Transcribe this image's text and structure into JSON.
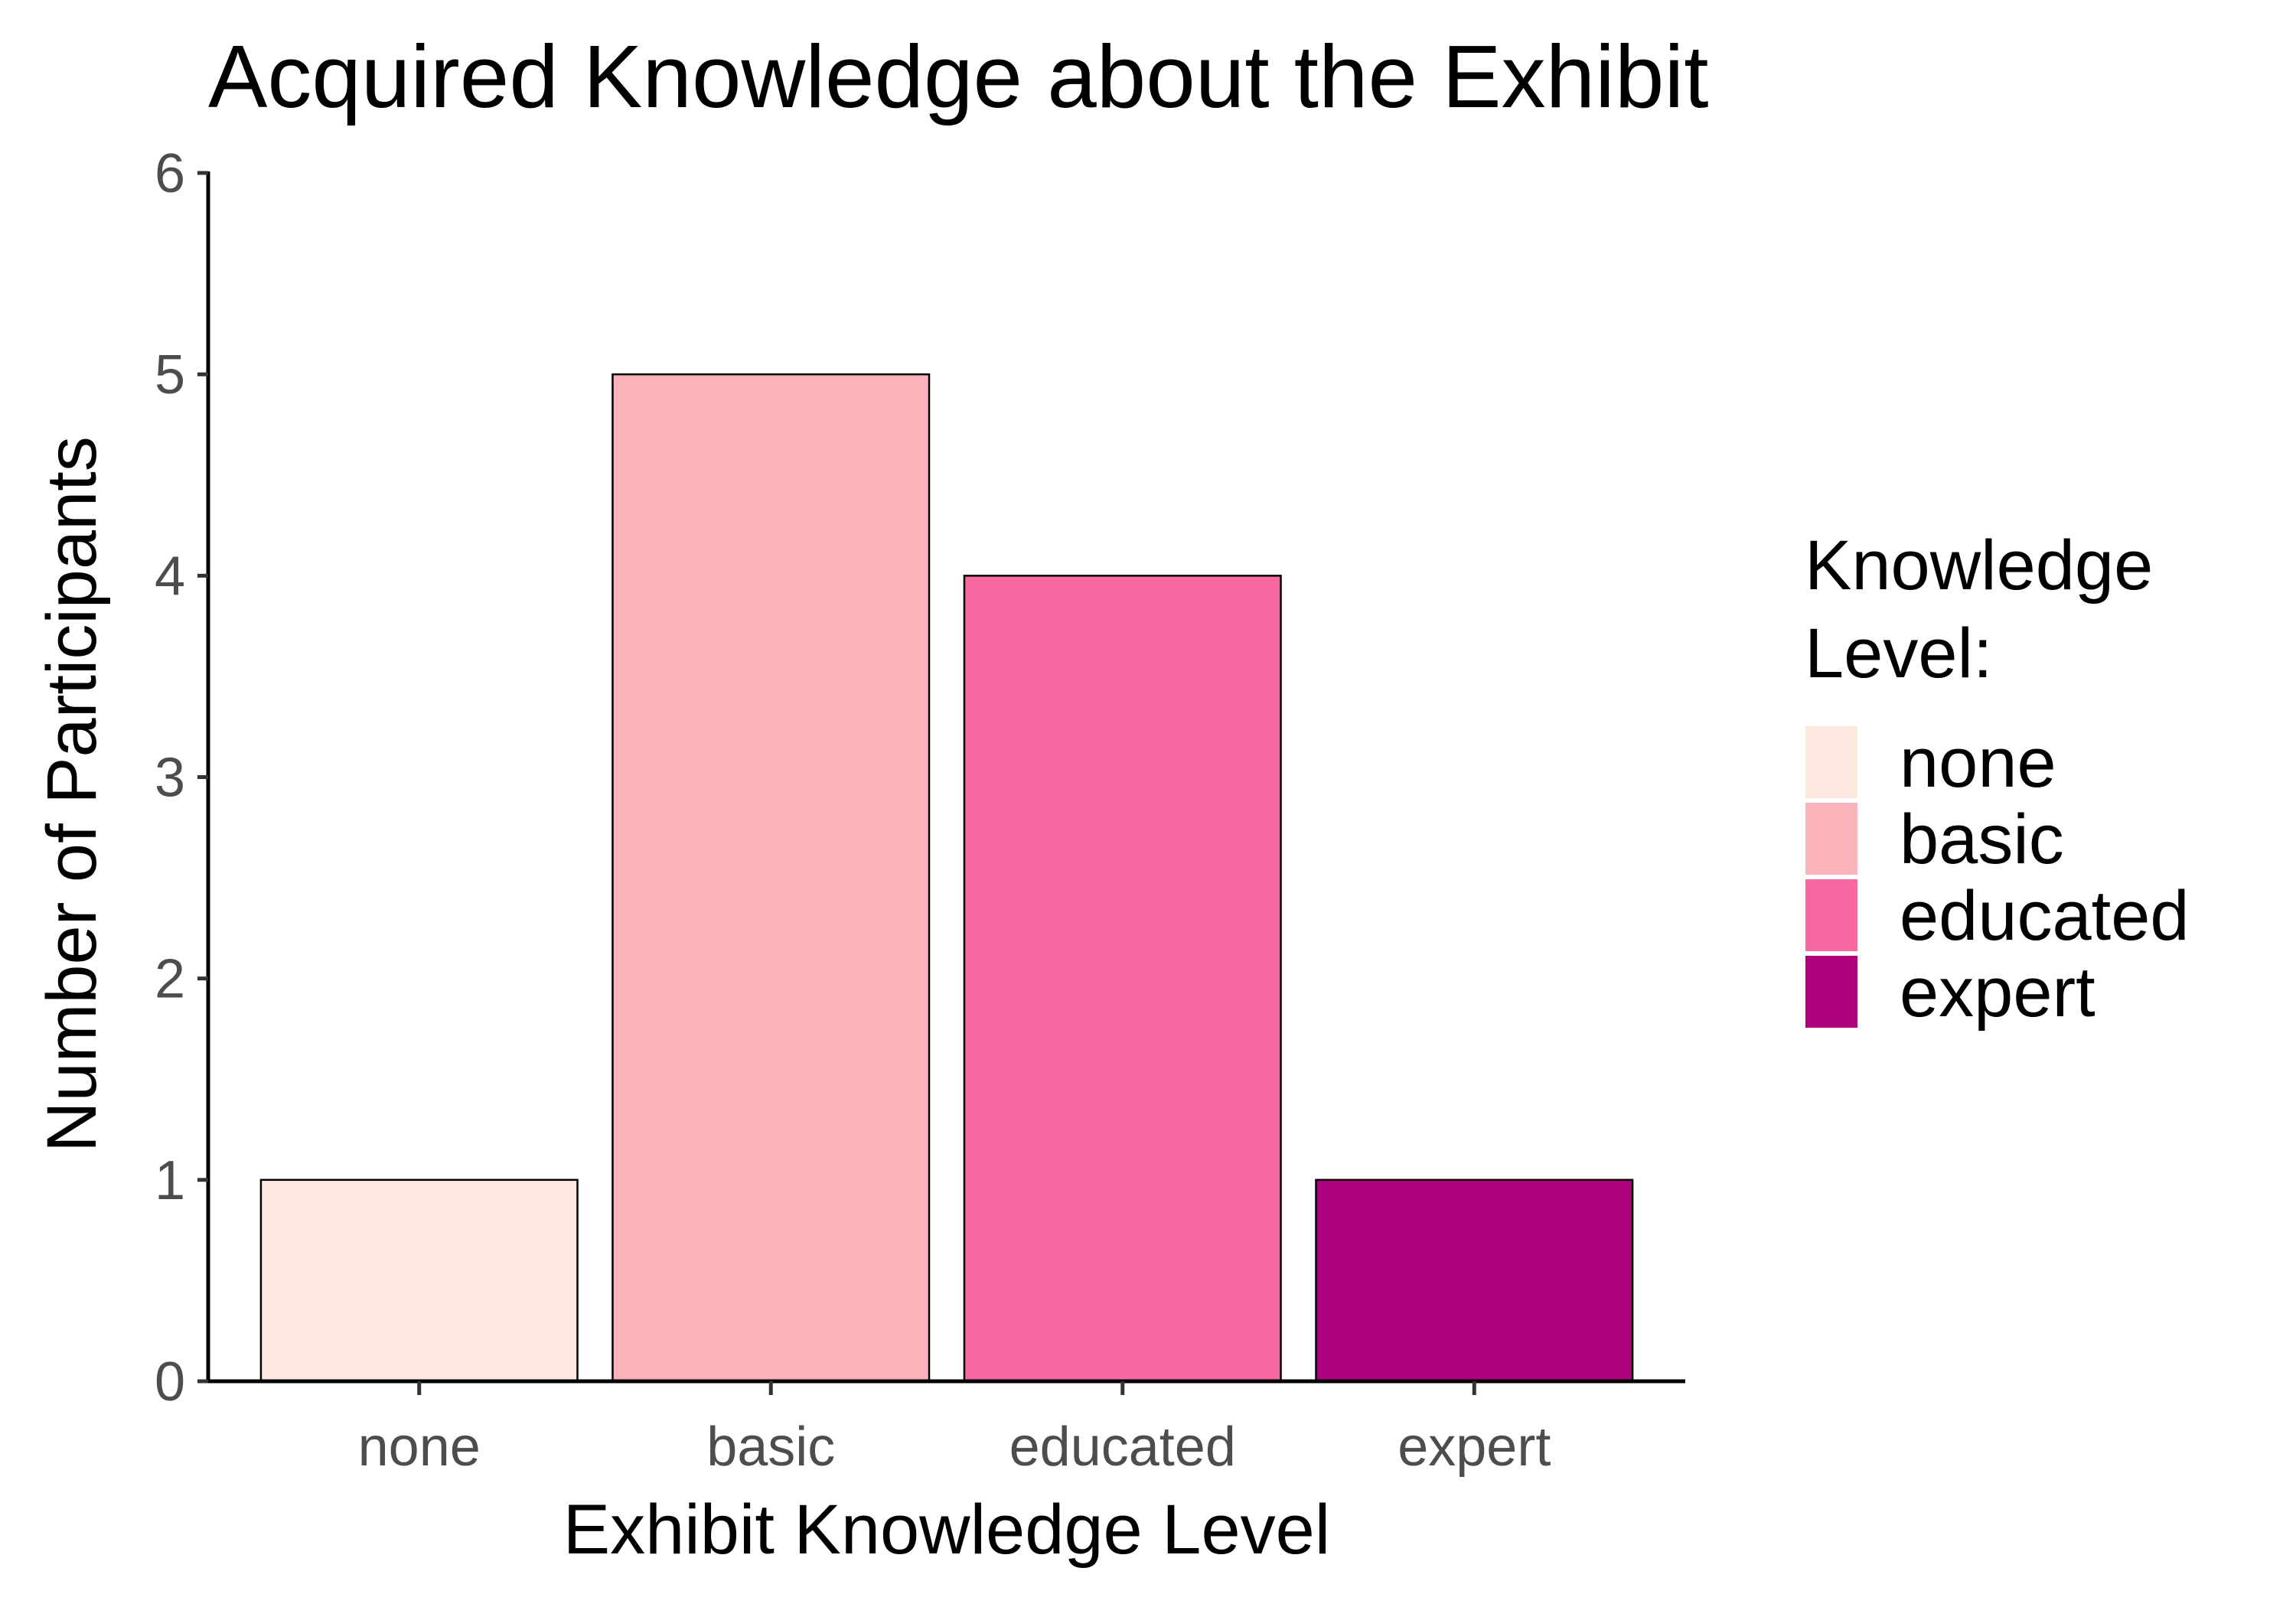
{
  "chart_data": {
    "type": "bar",
    "title": "Acquired Knowledge about the Exhibit",
    "xlabel": "Exhibit Knowledge Level",
    "ylabel": "Number of Participants",
    "categories": [
      "none",
      "basic",
      "educated",
      "expert"
    ],
    "values": [
      1,
      5,
      4,
      1
    ],
    "colors": [
      "#fde8e0",
      "#fab3b9",
      "#f768a1",
      "#ae017e"
    ],
    "ylim": [
      0,
      6
    ],
    "yticks": [
      "0",
      "1",
      "2",
      "3",
      "4",
      "5",
      "6"
    ],
    "grid": false,
    "legend": {
      "title_lines": [
        "Knowledge",
        "Level:"
      ],
      "position": "right",
      "entries": [
        "none",
        "basic",
        "educated",
        "expert"
      ]
    }
  }
}
